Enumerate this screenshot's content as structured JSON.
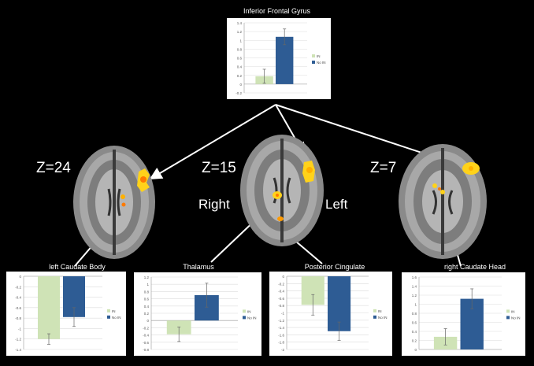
{
  "colors": {
    "in": "#cfe3b6",
    "noin": "#2e5c94",
    "activation": "#ffd21a",
    "activation_core": "#ff7a00"
  },
  "slices": [
    {
      "z_label": "Z=24"
    },
    {
      "z_label": "Z=15",
      "left_side": "Right",
      "right_side": "Left"
    },
    {
      "z_label": "Z=7"
    }
  ],
  "chart_data": [
    {
      "type": "bar",
      "title": "Inferior Frontal Gyrus",
      "categories": [
        "IN",
        "No IN"
      ],
      "values": [
        0.18,
        1.08
      ],
      "errors": [
        0.16,
        0.18
      ],
      "ylim": [
        -0.2,
        1.4
      ],
      "yticks": [
        "-0.2",
        "0",
        "0.2",
        "0.4",
        "0.6",
        "0.8",
        "1",
        "1.2",
        "1.4"
      ],
      "legend": [
        "IN",
        "No IN"
      ],
      "legend_position": "right"
    },
    {
      "type": "bar",
      "title": "left Caudate Body",
      "categories": [
        "IN",
        "No IN"
      ],
      "values": [
        -1.2,
        -0.78
      ],
      "errors": [
        0.1,
        0.18
      ],
      "ylim": [
        -1.4,
        0
      ],
      "yticks": [
        "0",
        "-0.2",
        "-0.4",
        "-0.6",
        "-0.8",
        "-1",
        "-1.2",
        "-1.4"
      ],
      "legend": [
        "IN",
        "No IN"
      ],
      "legend_position": "right"
    },
    {
      "type": "bar",
      "title": "Thalamus",
      "categories": [
        "IN",
        "No IN"
      ],
      "values": [
        -0.38,
        0.7
      ],
      "errors": [
        0.2,
        0.33
      ],
      "ylim": [
        -0.8,
        1.2
      ],
      "yticks": [
        "1.2",
        "1",
        "0.8",
        "0.6",
        "0.4",
        "0.2",
        "0",
        "-0.2",
        "-0.4",
        "-0.6",
        "-0.8"
      ],
      "legend": [
        "IN",
        "No IN"
      ],
      "legend_position": "right"
    },
    {
      "type": "bar",
      "title": "Posterior Cingulate",
      "categories": [
        "IN",
        "No IN"
      ],
      "values": [
        -0.78,
        -1.5
      ],
      "errors": [
        0.28,
        0.25
      ],
      "ylim": [
        -2,
        0
      ],
      "yticks": [
        "0",
        "-0.2",
        "-0.4",
        "-0.6",
        "-0.8",
        "-1",
        "-1.2",
        "-1.4",
        "-1.6",
        "-1.8",
        "-2"
      ],
      "legend": [
        "IN",
        "No IN"
      ],
      "legend_position": "right"
    },
    {
      "type": "bar",
      "title": "right Caudate Head",
      "categories": [
        "IN",
        "No IN"
      ],
      "values": [
        0.28,
        1.12
      ],
      "errors": [
        0.18,
        0.22
      ],
      "ylim": [
        0,
        1.6
      ],
      "yticks": [
        "1.6",
        "1.4",
        "1.2",
        "1",
        "0.8",
        "0.6",
        "0.4",
        "0.2",
        "0"
      ],
      "legend": [
        "IN",
        "No IN"
      ],
      "legend_position": "right"
    }
  ]
}
